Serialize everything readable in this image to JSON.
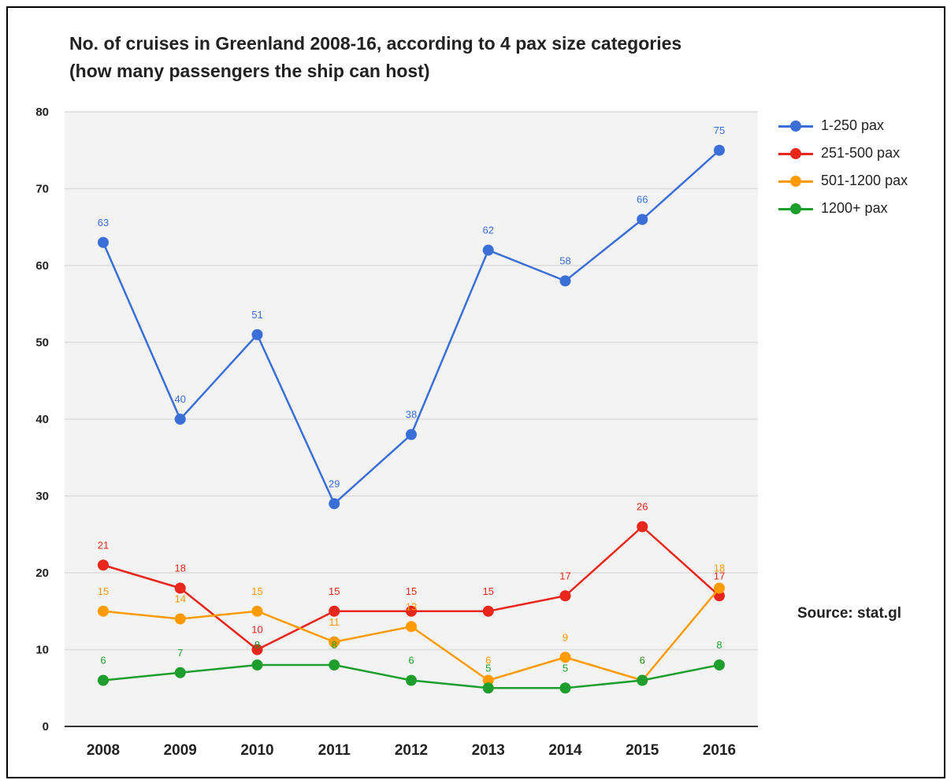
{
  "chart_data": {
    "type": "line",
    "title": "No. of cruises in Greenland 2008-16, according to 4 pax size categories (how many passengers the ship can host)",
    "xlabel": "",
    "ylabel": "",
    "categories": [
      "2008",
      "2009",
      "2010",
      "2011",
      "2012",
      "2013",
      "2014",
      "2015",
      "2016"
    ],
    "ylim": [
      0,
      80
    ],
    "yticks": [
      0,
      10,
      20,
      30,
      40,
      50,
      60,
      70,
      80
    ],
    "grid": true,
    "legend_position": "right",
    "data_labels": true,
    "series": [
      {
        "name": "1-250 pax",
        "color": "#3b6fd8",
        "values": [
          63,
          40,
          51,
          29,
          38,
          62,
          58,
          66,
          75
        ]
      },
      {
        "name": "251-500 pax",
        "color": "#e8261b",
        "values": [
          21,
          18,
          10,
          15,
          15,
          15,
          17,
          26,
          17
        ]
      },
      {
        "name": "501-1200 pax",
        "color": "#ff9b00",
        "values": [
          15,
          14,
          15,
          11,
          13,
          6,
          9,
          6,
          18
        ]
      },
      {
        "name": "1200+ pax",
        "color": "#1e9e2c",
        "values": [
          6,
          7,
          8,
          8,
          6,
          5,
          5,
          6,
          8
        ]
      }
    ],
    "annotation": "Source: stat.gl"
  }
}
